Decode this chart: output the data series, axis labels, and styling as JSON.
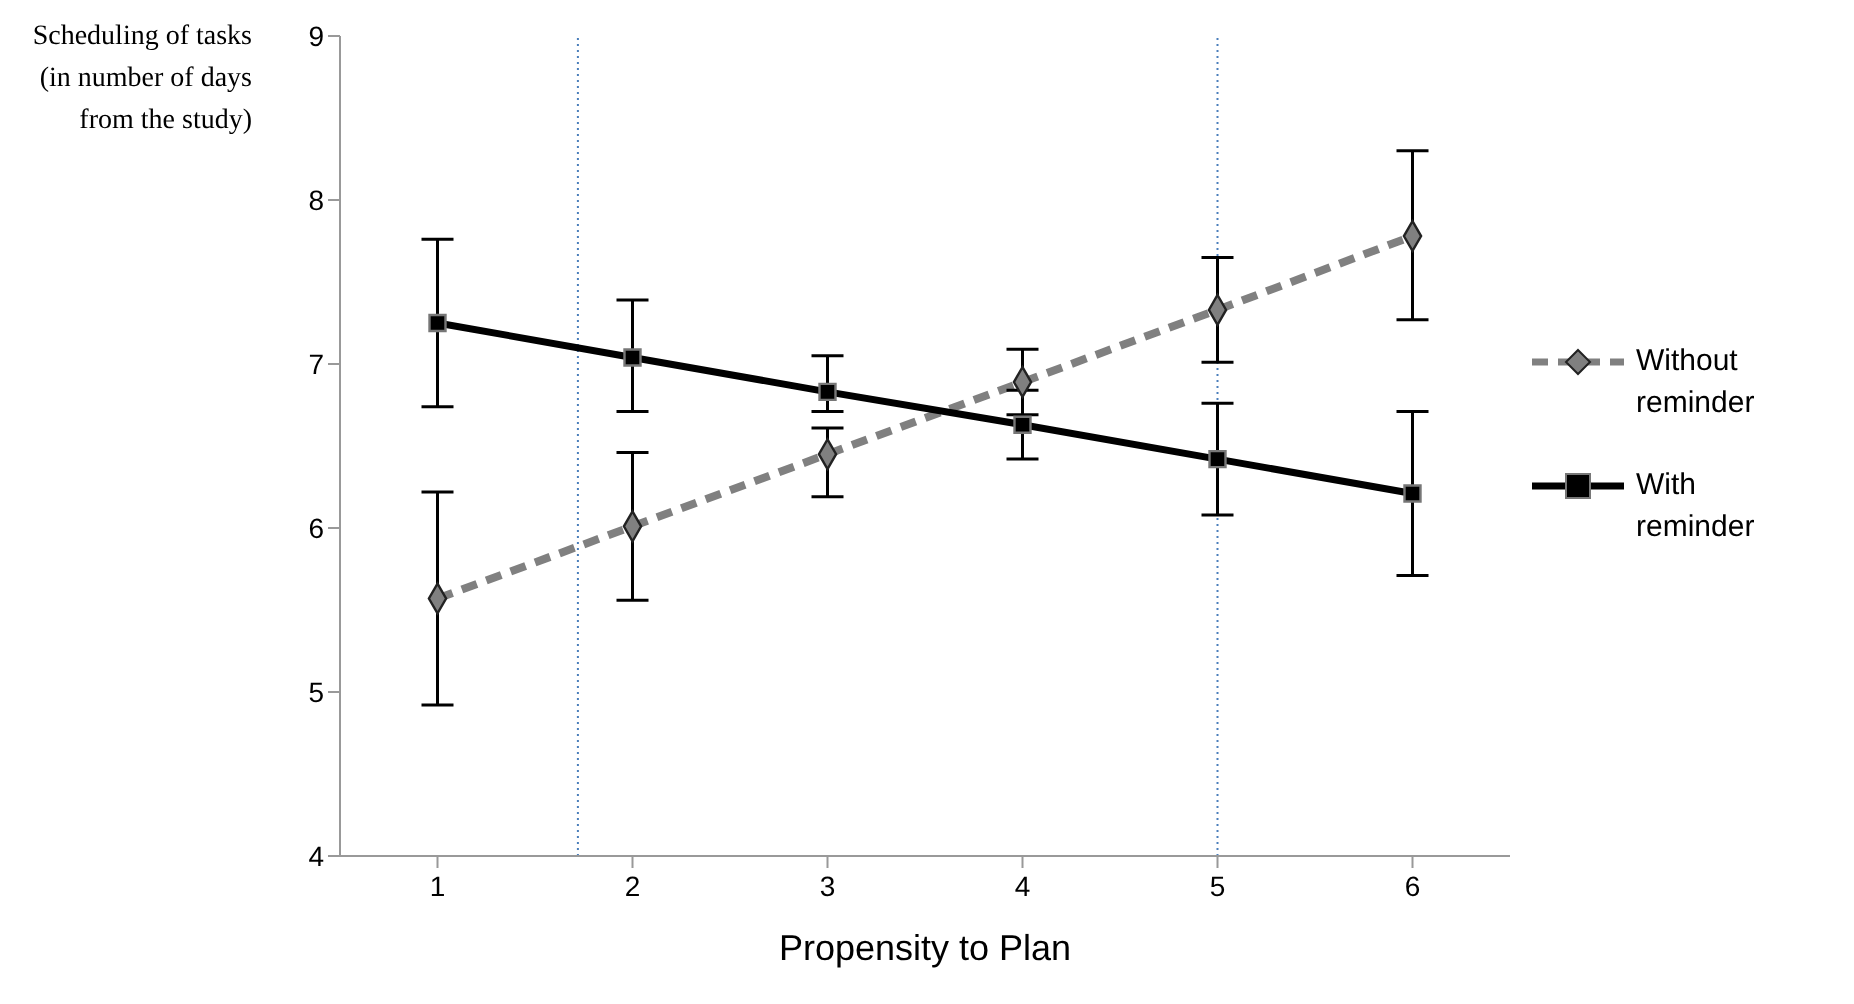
{
  "chart_data": {
    "type": "line",
    "xlabel": "Propensity to Plan",
    "ylabel": "Scheduling of tasks (in number of days from the study)",
    "x": [
      1,
      2,
      3,
      4,
      5,
      6
    ],
    "xlim": [
      0.5,
      6.5
    ],
    "xticks": [
      1,
      2,
      3,
      4,
      5,
      6
    ],
    "ylim": [
      4,
      9
    ],
    "yticks": [
      4,
      5,
      6,
      7,
      8,
      9
    ],
    "grid": false,
    "legend": "right",
    "series": [
      {
        "name": "Without reminder",
        "color": "#808080",
        "marker": "diamond",
        "line_style": "dashed",
        "values": [
          5.57,
          6.01,
          6.45,
          6.89,
          7.33,
          7.78
        ],
        "errors": [
          [
            4.92,
            6.22
          ],
          [
            5.56,
            6.46
          ],
          [
            6.19,
            6.61
          ],
          [
            6.69,
            7.09
          ],
          [
            7.01,
            7.65
          ],
          [
            7.27,
            8.3
          ]
        ]
      },
      {
        "name": "With reminder",
        "color": "#000000",
        "marker": "square",
        "line_style": "solid",
        "values": [
          7.25,
          7.04,
          6.83,
          6.63,
          6.42,
          6.21
        ],
        "errors": [
          [
            6.74,
            7.76
          ],
          [
            6.71,
            7.39
          ],
          [
            6.71,
            7.05
          ],
          [
            6.42,
            6.84
          ],
          [
            6.08,
            6.76
          ],
          [
            5.71,
            6.71
          ]
        ]
      }
    ],
    "ref_lines": [
      {
        "axis": "x",
        "value": 1.72,
        "color": "#4a7ebb",
        "line_style": "dotted"
      },
      {
        "axis": "x",
        "value": 5,
        "color": "#4a7ebb",
        "line_style": "dotted"
      }
    ]
  }
}
